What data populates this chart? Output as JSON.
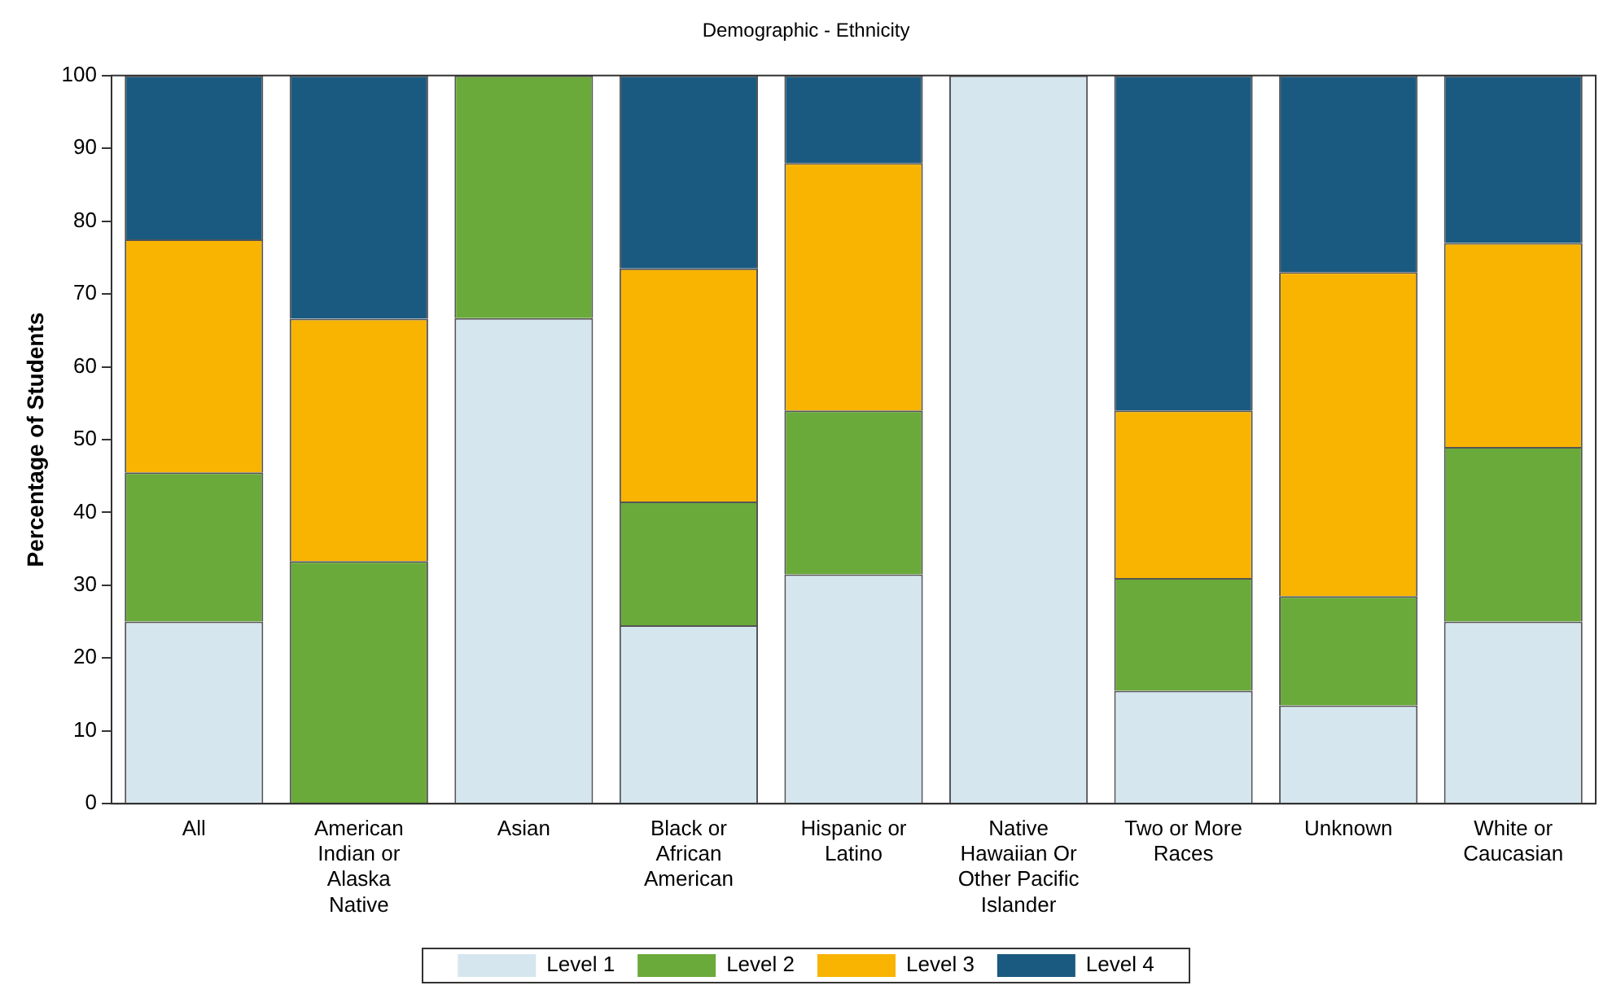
{
  "chart_data": {
    "type": "bar",
    "title": "Demographic - Ethnicity",
    "ylabel": "Percentage of Students",
    "categories": [
      "All",
      "American Indian or Alaska Native",
      "Asian",
      "Black or African American",
      "Hispanic or Latino",
      "Native Hawaiian Or Other Pacific Islander",
      "Two or More Races",
      "Unknown",
      "White or Caucasian"
    ],
    "stacked": true,
    "series": [
      {
        "name": "Level 1",
        "color": "#d6e6ef",
        "values": [
          25,
          0,
          66.7,
          24.5,
          31.5,
          100,
          15.5,
          13.5,
          25
        ]
      },
      {
        "name": "Level 2",
        "color": "#6aaa3a",
        "values": [
          20.5,
          33.3,
          33.3,
          17,
          22.5,
          0,
          15.5,
          15,
          24
        ]
      },
      {
        "name": "Level 3",
        "color": "#f8b400",
        "values": [
          32,
          33.3,
          0,
          32,
          34,
          0,
          23,
          44.5,
          28
        ]
      },
      {
        "name": "Level 4",
        "color": "#1a5a80",
        "values": [
          22.5,
          33.4,
          0,
          26.5,
          12,
          0,
          46,
          27,
          23
        ]
      }
    ],
    "ylim": [
      0,
      100
    ],
    "yticks": [
      0,
      10,
      20,
      30,
      40,
      50,
      60,
      70,
      80,
      90,
      100
    ],
    "grid": false,
    "legend": "bottom"
  }
}
